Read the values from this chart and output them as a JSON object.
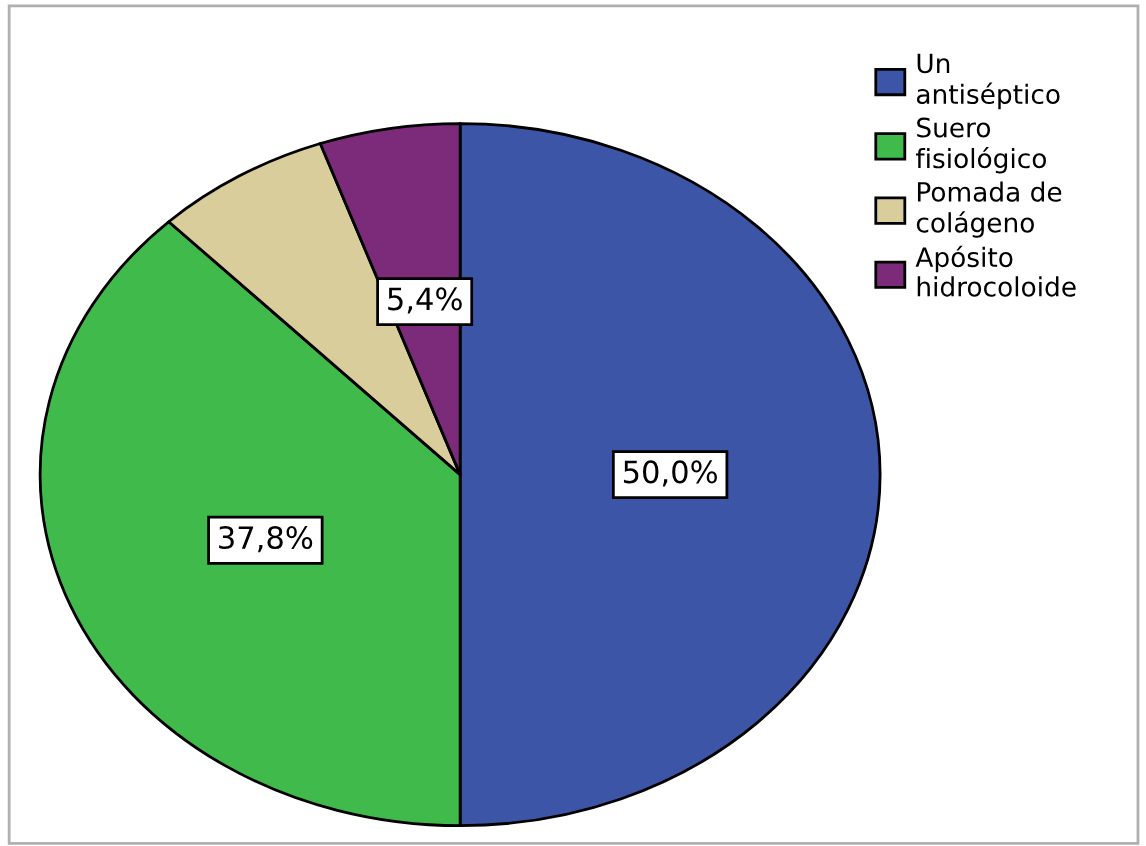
{
  "chart_data": {
    "type": "pie",
    "categories": [
      "Un\nantiséptico",
      "Suero\nfisiológico",
      "Pomada de\ncolágeno",
      "Apósito\nhidrocoloide"
    ],
    "values": [
      50.0,
      37.8,
      6.8,
      5.4
    ],
    "value_labels": [
      "50,0%",
      "37,8%",
      null,
      "5,4%"
    ],
    "colors": [
      "#3d55a6",
      "#3fba4b",
      "#d9cd9b",
      "#7c2b7a"
    ],
    "legend": "top right"
  }
}
